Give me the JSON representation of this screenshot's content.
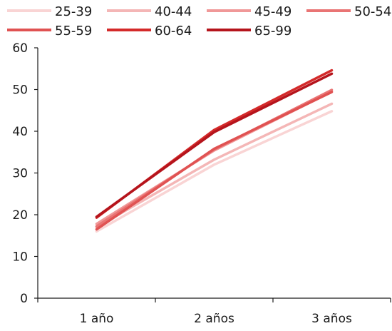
{
  "chart_data": {
    "type": "line",
    "title": "",
    "xlabel": "",
    "ylabel": "",
    "categories": [
      "1 año",
      "2 años",
      "3 años"
    ],
    "ylim": [
      0,
      60
    ],
    "yticks": [
      0,
      10,
      20,
      30,
      40,
      50,
      60
    ],
    "grid": false,
    "legend_position": "top",
    "series": [
      {
        "name": "25-39",
        "color": "#f9d4d4",
        "values": [
          16.0,
          32.0,
          44.8
        ]
      },
      {
        "name": "40-44",
        "color": "#f4b6b6",
        "values": [
          17.0,
          33.2,
          46.6
        ]
      },
      {
        "name": "45-49",
        "color": "#f09898",
        "values": [
          17.8,
          35.4,
          49.5
        ]
      },
      {
        "name": "50-54",
        "color": "#e97474",
        "values": [
          17.2,
          35.6,
          49.9
        ]
      },
      {
        "name": "55-59",
        "color": "#e05252",
        "values": [
          16.5,
          35.8,
          49.4
        ]
      },
      {
        "name": "60-64",
        "color": "#d42a2a",
        "values": [
          19.3,
          40.3,
          54.6
        ]
      },
      {
        "name": "65-99",
        "color": "#b5141c",
        "values": [
          19.5,
          39.8,
          53.8
        ]
      }
    ]
  }
}
